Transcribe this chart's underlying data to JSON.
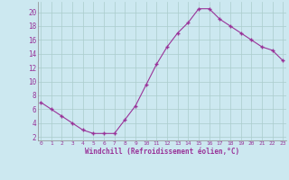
{
  "x": [
    0,
    1,
    2,
    3,
    4,
    5,
    6,
    7,
    8,
    9,
    10,
    11,
    12,
    13,
    14,
    15,
    16,
    17,
    18,
    19,
    20,
    21,
    22,
    23
  ],
  "y": [
    7,
    6,
    5,
    4,
    3,
    2.5,
    2.5,
    2.5,
    4.5,
    6.5,
    9.5,
    12.5,
    15,
    17,
    18.5,
    20.5,
    20.5,
    19,
    18,
    17,
    16,
    15,
    14.5,
    13
  ],
  "line_color": "#993399",
  "marker": "+",
  "bg_color": "#cce8f0",
  "grid_color": "#aacccc",
  "xlabel": "Windchill (Refroidissement éolien,°C)",
  "xlabel_color": "#993399",
  "tick_color": "#993399",
  "yticks": [
    2,
    4,
    6,
    8,
    10,
    12,
    14,
    16,
    18,
    20
  ],
  "xtick_labels": [
    "0",
    "1",
    "2",
    "3",
    "4",
    "5",
    "6",
    "7",
    "8",
    "9",
    "10",
    "11",
    "12",
    "13",
    "14",
    "15",
    "16",
    "17",
    "18",
    "19",
    "20",
    "21",
    "22",
    "23"
  ],
  "xticks": [
    0,
    1,
    2,
    3,
    4,
    5,
    6,
    7,
    8,
    9,
    10,
    11,
    12,
    13,
    14,
    15,
    16,
    17,
    18,
    19,
    20,
    21,
    22,
    23
  ],
  "xlim": [
    -0.3,
    23.3
  ],
  "ylim": [
    1.5,
    21.5
  ]
}
